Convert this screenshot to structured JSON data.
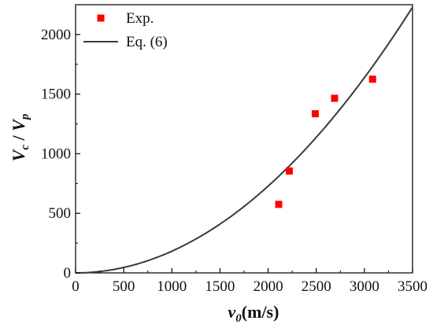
{
  "chart_data": {
    "type": "scatter",
    "title": "",
    "xlabel": {
      "symbol": "v",
      "subscript": "0",
      "unit": "(m/s)"
    },
    "ylabel": {
      "numerator": "V",
      "numerator_sub": "c",
      "separator": " / ",
      "denominator": "V",
      "denominator_sub": "p"
    },
    "xlim": [
      0,
      3500
    ],
    "ylim": [
      0,
      2250
    ],
    "xticks": [
      "0",
      "500",
      "1000",
      "1500",
      "2000",
      "2500",
      "3000",
      "3500"
    ],
    "yticks": [
      "0",
      "500",
      "1000",
      "1500",
      "2000"
    ],
    "grid": false,
    "legend_position": "top-left",
    "series": [
      {
        "name": "Exp.",
        "kind": "markers",
        "marker": "square",
        "color": "#ff0000",
        "points": [
          {
            "x": 2110,
            "y": 575
          },
          {
            "x": 2220,
            "y": 855
          },
          {
            "x": 2490,
            "y": 1335
          },
          {
            "x": 2690,
            "y": 1465
          },
          {
            "x": 3085,
            "y": 1625
          }
        ]
      },
      {
        "name": "Eq. (6)",
        "kind": "line",
        "color": "#3a3a3a",
        "curve": "power",
        "coefficient": 0.000182,
        "exponent": 2,
        "x_range": [
          0,
          3500
        ]
      }
    ]
  }
}
